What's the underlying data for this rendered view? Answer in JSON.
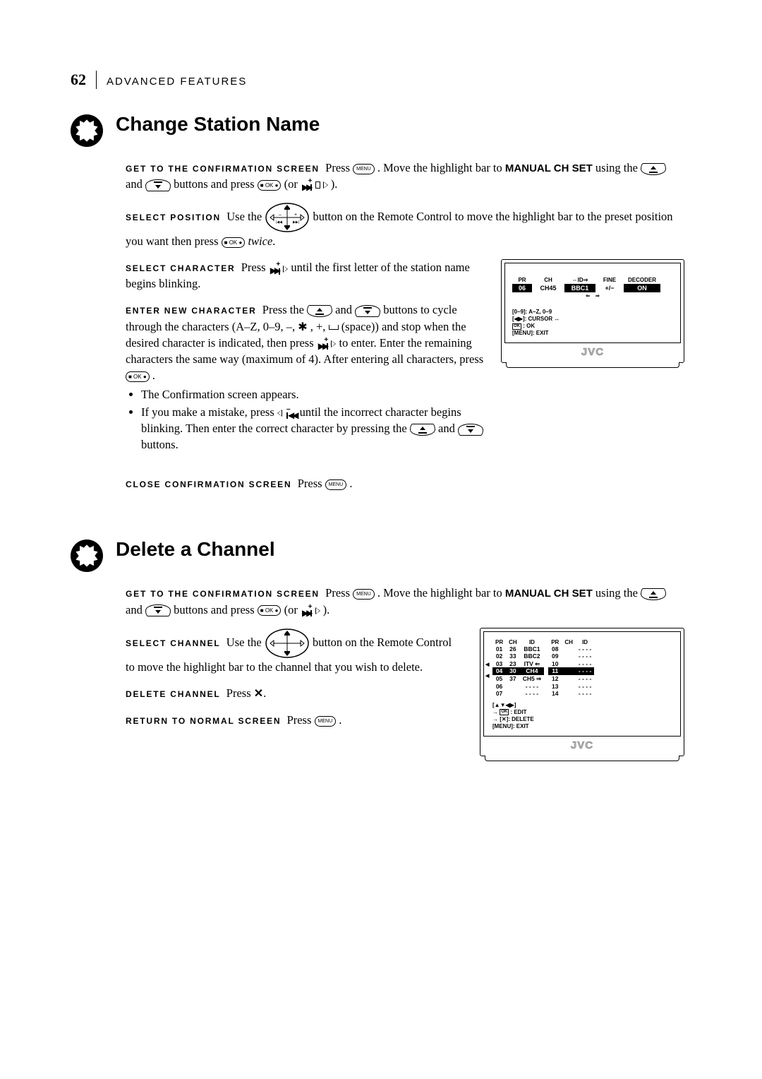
{
  "page": {
    "number": "62",
    "header": "ADVANCED FEATURES"
  },
  "section1": {
    "title": "Change Station Name",
    "steps": {
      "a_label": "GET TO THE CONFIRMATION SCREEN",
      "a_text1": "Press ",
      "a_text2": ". Move the highlight bar to ",
      "a_bold": "MANUAL CH SET",
      "a_text3": " using the ",
      "a_text4": " and ",
      "a_text5": " buttons and press ",
      "a_text6": " (or ",
      "a_text7": ").",
      "b_label": "SELECT POSITION",
      "b_text1": "Use the ",
      "b_text2": " button on the Remote Control to move the highlight bar to the preset position you want then press ",
      "b_text3": "twice",
      "b_text4": ".",
      "c_label": "SELECT CHARACTER",
      "c_text1": "Press ",
      "c_text2": " until the first letter of the station name begins blinking.",
      "d_label": "ENTER NEW CHARACTER",
      "d_text1": "Press the ",
      "d_text2": " and ",
      "d_text3": " buttons to cycle through the characters (A–Z, 0–9, –, ",
      "d_text4": ", +, ",
      "d_text5": "(space)) and stop when the desired character is indicated, then press ",
      "d_text6": " to enter. Enter the remaining characters the same way (maximum of 4). After entering all characters, press ",
      "d_text7": ".",
      "bullet1": "The Confirmation screen appears.",
      "bullet2a": "If you make a mistake, press ",
      "bullet2b": " until the incorrect character begins blinking. Then enter the correct character by pressing the ",
      "bullet2c": " and ",
      "bullet2d": " buttons.",
      "e_label": "CLOSE CONFIRMATION SCREEN",
      "e_text1": "Press ",
      "e_text2": "."
    },
    "osd": {
      "cols": [
        "PR",
        "CH",
        "⇔ID⇒",
        "FINE",
        "DECODER"
      ],
      "row": [
        "06",
        "CH45",
        "BBC1",
        "+/−",
        "ON"
      ],
      "legend": [
        "[0–9]: A–Z, 0–9",
        "[◀▶]: CURSOR ↔",
        "OK : OK",
        "[MENU]: EXIT"
      ],
      "logo": "JVC"
    }
  },
  "section2": {
    "title": "Delete a Channel",
    "steps": {
      "a_label": "GET TO THE CONFIRMATION SCREEN",
      "a_text1": "Press ",
      "a_text2": ". Move the highlight bar to ",
      "a_bold": "MANUAL CH SET",
      "a_text3": " using the ",
      "a_text4": " and ",
      "a_text5": " buttons and press ",
      "a_text6": "(or ",
      "a_text7": ").",
      "b_label": "SELECT CHANNEL",
      "b_text1": "Use the ",
      "b_text2": " button on the Remote Control to move the highlight bar to the channel that you wish to delete.",
      "c_label": "DELETE CHANNEL",
      "c_text1": "Press ",
      "c_text2": ".",
      "d_label": "RETURN TO NORMAL SCREEN",
      "d_text1": "Press ",
      "d_text2": "."
    },
    "chlist": {
      "cols": [
        "PR",
        "CH",
        "ID"
      ],
      "left": [
        {
          "pr": "01",
          "ch": "26",
          "id": "BBC1"
        },
        {
          "pr": "02",
          "ch": "33",
          "id": "BBC2"
        },
        {
          "pr": "03",
          "ch": "23",
          "id": "ITV ⇐"
        },
        {
          "pr": "04",
          "ch": "30",
          "id": "CH4",
          "hl": true
        },
        {
          "pr": "05",
          "ch": "37",
          "id": "CH5 ⇒"
        },
        {
          "pr": "06",
          "ch": "",
          "id": "- - - -"
        },
        {
          "pr": "07",
          "ch": "",
          "id": "- - - -"
        }
      ],
      "right": [
        {
          "pr": "08",
          "ch": "",
          "id": "- - - -"
        },
        {
          "pr": "09",
          "ch": "",
          "id": "- - - -"
        },
        {
          "pr": "10",
          "ch": "",
          "id": "- - - -"
        },
        {
          "pr": "11",
          "ch": "",
          "id": "- - - -",
          "hl": true
        },
        {
          "pr": "12",
          "ch": "",
          "id": "- - - -"
        },
        {
          "pr": "13",
          "ch": "",
          "id": "- - - -"
        },
        {
          "pr": "14",
          "ch": "",
          "id": "- - - -"
        }
      ],
      "legend": [
        "[▲▼◀▶]",
        "→ OK : EDIT",
        "→ [✕]: DELETE",
        "[MENU]: EXIT"
      ],
      "logo": "JVC"
    }
  }
}
